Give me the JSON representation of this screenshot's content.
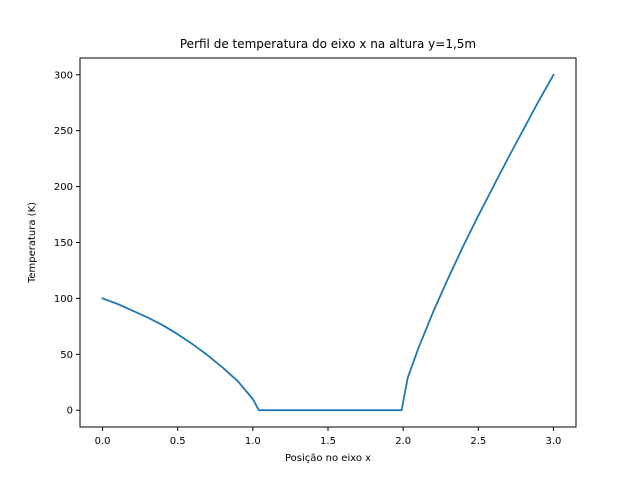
{
  "chart_data": {
    "type": "line",
    "title": "Perfil de temperatura do eixo x na altura y=1,5m",
    "xlabel": "Posição no eixo x",
    "ylabel": "Temperatura (K)",
    "xlim": [
      -0.15,
      3.15
    ],
    "ylim": [
      -15,
      315
    ],
    "x_ticks": [
      0.0,
      0.5,
      1.0,
      1.5,
      2.0,
      2.5,
      3.0
    ],
    "x_tick_labels": [
      "0.0",
      "0.5",
      "1.0",
      "1.5",
      "2.0",
      "2.5",
      "3.0"
    ],
    "y_ticks": [
      0,
      50,
      100,
      150,
      200,
      250,
      300
    ],
    "y_tick_labels": [
      "0",
      "50",
      "100",
      "150",
      "200",
      "250",
      "300"
    ],
    "grid": false,
    "series": [
      {
        "color": "#1f77b4",
        "x": [
          0.0,
          0.1,
          0.2,
          0.3,
          0.4,
          0.5,
          0.6,
          0.7,
          0.8,
          0.9,
          1.0,
          1.04,
          1.2,
          1.5,
          1.8,
          1.99,
          2.03,
          2.1,
          2.2,
          2.3,
          2.4,
          2.5,
          2.6,
          2.7,
          2.8,
          2.9,
          3.0
        ],
        "y": [
          100,
          95,
          89,
          83,
          76,
          68,
          59,
          49,
          38,
          26,
          10,
          0,
          0,
          0,
          0,
          0,
          29,
          55,
          88,
          118,
          147,
          174,
          200,
          226,
          251,
          276,
          300
        ]
      }
    ]
  }
}
